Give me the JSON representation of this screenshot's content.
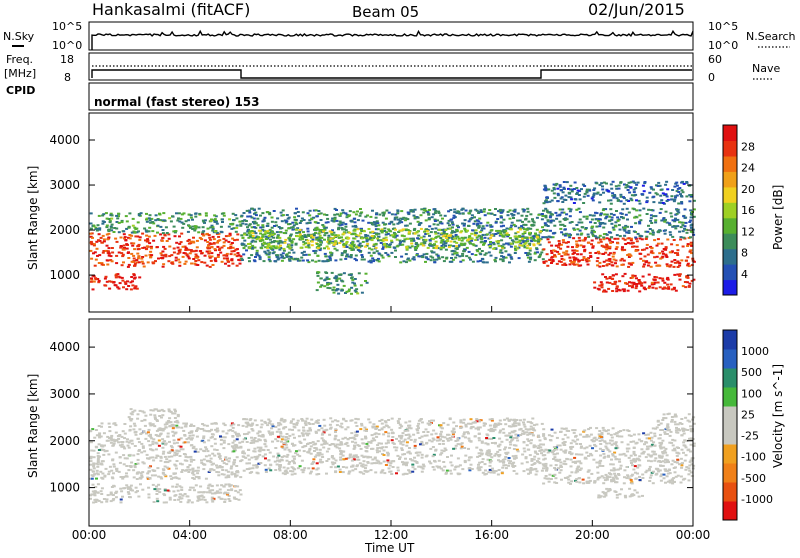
{
  "header": {
    "site": "Hankasalmi (fitACF)",
    "beam": "Beam 05",
    "date": "02/Jun/2015"
  },
  "strip_labels": {
    "nsky": "N.Sky",
    "nsearch": "N.Search",
    "freq": "Freq.",
    "mhz": "[MHz]",
    "cpid": "CPID",
    "nave": "Nave",
    "nsky_top": "10^5",
    "nsky_bot": "10^0",
    "freq_top": "18",
    "freq_bot": "8",
    "nave_top": "60",
    "nave_bot": "0",
    "cpid_text": "normal (fast stereo) 153"
  },
  "axes": {
    "ylabel": "Slant Range [km]",
    "xlabel": "Time UT",
    "yticks": [
      "1000",
      "2000",
      "3000",
      "4000"
    ],
    "xticks": [
      "00:00",
      "04:00",
      "08:00",
      "12:00",
      "16:00",
      "20:00",
      "00:00"
    ]
  },
  "colors": {
    "power_scale": [
      "#1c1ce6",
      "#2450b4",
      "#2d6e8c",
      "#3c8c5a",
      "#57b030",
      "#9ed024",
      "#f0d020",
      "#f0a018",
      "#f07010",
      "#e83210",
      "#e01010"
    ],
    "velocity_scale": [
      "#1c3ca8",
      "#2860c0",
      "#2a8e6a",
      "#46b83a",
      "#c8c8c0",
      "#c8c8c0",
      "#f0a020",
      "#f08018",
      "#e85010",
      "#e01010"
    ]
  },
  "power_colorbar": {
    "label": "Power [dB]",
    "ticks": [
      "4",
      "8",
      "12",
      "16",
      "20",
      "24",
      "28"
    ]
  },
  "velocity_colorbar": {
    "label": "Velocity [m s^-1]",
    "ticks": [
      "1000",
      "500",
      "100",
      "25",
      "-25",
      "-100",
      "-500",
      "-1000"
    ]
  },
  "chart_data": [
    {
      "type": "heatmap",
      "title": "Power",
      "xlabel": "Time UT",
      "ylabel": "Slant Range [km]",
      "xlim": [
        0,
        24
      ],
      "ylim": [
        180,
        4600
      ],
      "colorbar": {
        "label": "Power [dB]",
        "range": [
          0,
          30
        ]
      },
      "bands": [
        {
          "x": [
            0.0,
            6.0
          ],
          "y": [
            1200,
            1950
          ],
          "value": 26
        },
        {
          "x": [
            0.0,
            6.0
          ],
          "y": [
            1950,
            2400
          ],
          "value": 10
        },
        {
          "x": [
            0.0,
            2.0
          ],
          "y": [
            700,
            1050
          ],
          "value": 28
        },
        {
          "x": [
            6.0,
            18.0
          ],
          "y": [
            1300,
            2500
          ],
          "value": 8
        },
        {
          "x": [
            6.0,
            18.0
          ],
          "y": [
            1600,
            2050
          ],
          "value": 14
        },
        {
          "x": [
            9.0,
            11.0
          ],
          "y": [
            600,
            1100
          ],
          "value": 10
        },
        {
          "x": [
            18.0,
            24.0
          ],
          "y": [
            1200,
            1850
          ],
          "value": 26
        },
        {
          "x": [
            18.0,
            24.0
          ],
          "y": [
            1850,
            2500
          ],
          "value": 8
        },
        {
          "x": [
            18.0,
            24.0
          ],
          "y": [
            2600,
            3100
          ],
          "value": 6
        },
        {
          "x": [
            20.0,
            24.0
          ],
          "y": [
            650,
            1050
          ],
          "value": 28
        }
      ]
    },
    {
      "type": "heatmap",
      "title": "Velocity",
      "xlabel": "Time UT",
      "ylabel": "Slant Range [km]",
      "xlim": [
        0,
        24
      ],
      "ylim": [
        180,
        4600
      ],
      "colorbar": {
        "label": "Velocity [m s^-1]",
        "range": [
          -1000,
          1000
        ]
      },
      "bands": [
        {
          "x": [
            0.0,
            6.0
          ],
          "y": [
            1200,
            2400
          ],
          "value": 0
        },
        {
          "x": [
            0.0,
            6.0
          ],
          "y": [
            700,
            1100
          ],
          "value": 0
        },
        {
          "x": [
            1.5,
            3.5
          ],
          "y": [
            2300,
            2700
          ],
          "value": -150
        },
        {
          "x": [
            6.0,
            18.0
          ],
          "y": [
            1300,
            2500
          ],
          "value": 0
        },
        {
          "x": [
            18.0,
            24.0
          ],
          "y": [
            1100,
            2300
          ],
          "value": 0
        },
        {
          "x": [
            22.5,
            24.0
          ],
          "y": [
            2200,
            2600
          ],
          "value": -150
        },
        {
          "x": [
            20.0,
            22.0
          ],
          "y": [
            800,
            1000
          ],
          "value": -150
        }
      ]
    }
  ]
}
